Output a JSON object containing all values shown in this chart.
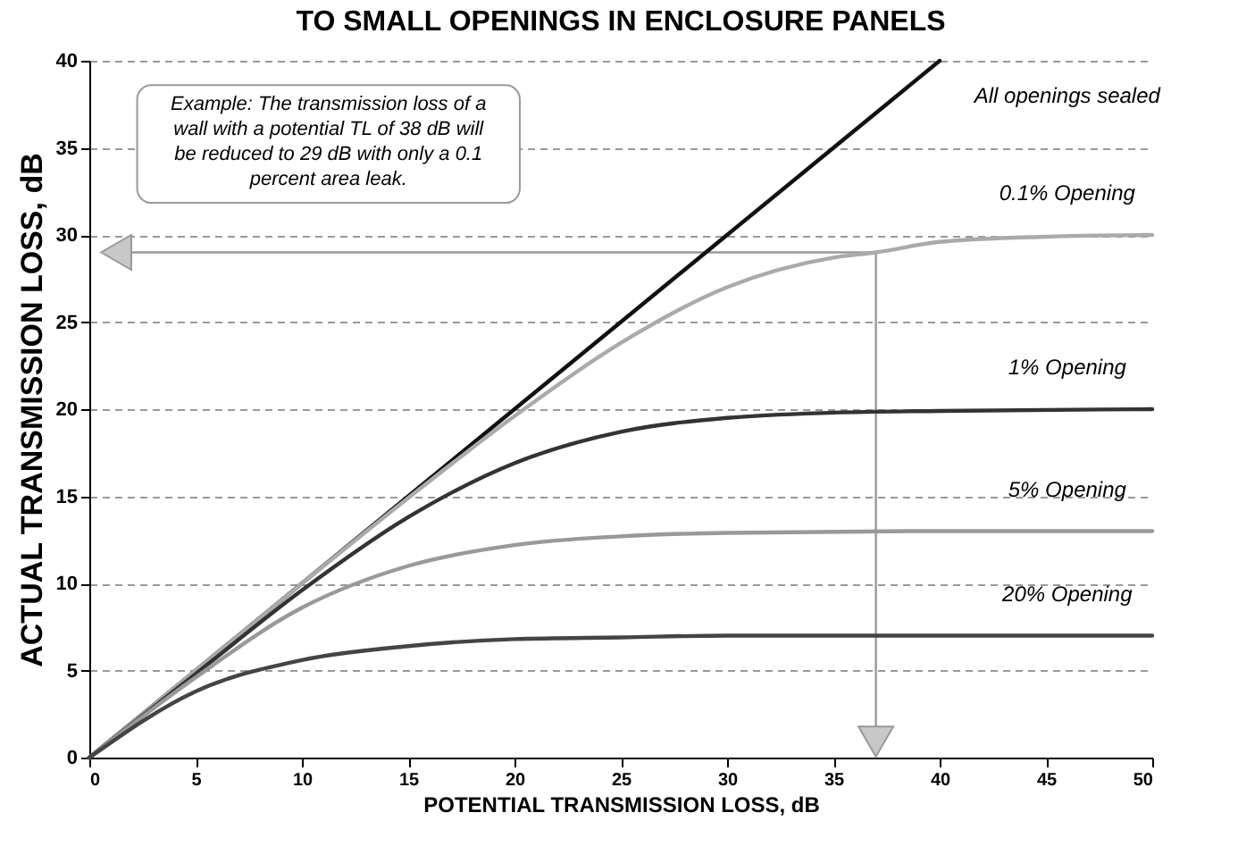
{
  "chart_data": {
    "type": "line",
    "title": "TO SMALL OPENINGS IN ENCLOSURE PANELS",
    "xlabel": "POTENTIAL TRANSMISSION LOSS, dB",
    "ylabel": "ACTUAL TRANSMISSION LOSS, dB",
    "xlim": [
      0,
      50
    ],
    "ylim": [
      0,
      40
    ],
    "xticks": [
      0,
      5,
      10,
      15,
      20,
      25,
      30,
      35,
      40,
      45,
      50
    ],
    "yticks": [
      0,
      5,
      10,
      15,
      20,
      25,
      30,
      35,
      40
    ],
    "grid": "y",
    "legend": false,
    "marker": "none",
    "line_style": "solid",
    "series": [
      {
        "name": "All openings sealed",
        "color": "#111111",
        "x": [
          0,
          10,
          20,
          30,
          40
        ],
        "values": [
          0,
          10,
          20,
          30,
          40
        ]
      },
      {
        "name": "0.1% Opening",
        "color": "#aaaaaa",
        "x": [
          0,
          5,
          10,
          15,
          20,
          25,
          30,
          35,
          37,
          40,
          45,
          50
        ],
        "values": [
          0,
          5,
          10,
          14.9,
          19.6,
          23.8,
          27,
          28.7,
          29,
          29.6,
          29.9,
          30
        ]
      },
      {
        "name": "1% Opening",
        "color": "#333333",
        "x": [
          0,
          5,
          10,
          15,
          20,
          25,
          30,
          35,
          40,
          50
        ],
        "values": [
          0,
          4.8,
          9.6,
          13.8,
          16.9,
          18.7,
          19.5,
          19.8,
          19.9,
          20
        ]
      },
      {
        "name": "5% Opening",
        "color": "#999999",
        "x": [
          0,
          5,
          10,
          15,
          20,
          25,
          30,
          40,
          50
        ],
        "values": [
          0,
          4.6,
          8.6,
          11,
          12.2,
          12.7,
          12.9,
          13,
          13
        ]
      },
      {
        "name": "20% Opening",
        "color": "#444444",
        "x": [
          0,
          5,
          10,
          15,
          20,
          25,
          30,
          50
        ],
        "values": [
          0,
          3.8,
          5.6,
          6.4,
          6.8,
          6.9,
          7,
          7
        ]
      }
    ],
    "ref_lines": [
      {
        "axis": "x",
        "value": 37,
        "color": "#999999"
      },
      {
        "axis": "y",
        "value": 29,
        "color": "#999999"
      }
    ],
    "annotations": [
      "Example:  The transmission loss of a wall with a potential TL of 38 dB will be reduced to 29 dB with only a 0.1 percent area leak."
    ]
  }
}
